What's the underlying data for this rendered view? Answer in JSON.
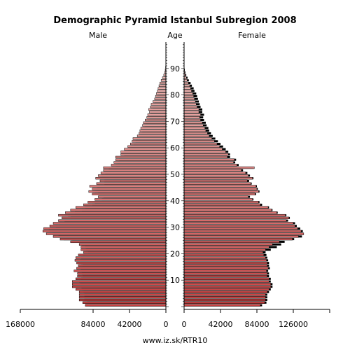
{
  "chart_data": {
    "type": "bar",
    "orientation": "horizontal-pyramid",
    "title": "Demographic Pyramid Istanbul Subregion 2008",
    "left_label": "Male",
    "center_label": "Age",
    "right_label": "Female",
    "footer": "www.iz.sk/RTR10",
    "age_ticks": [
      "20",
      "30",
      "40",
      "50",
      "60",
      "70",
      "80",
      "90",
      "10"
    ],
    "age_tick_values": [
      20,
      30,
      40,
      50,
      60,
      70,
      80,
      90,
      10
    ],
    "male_axis": {
      "ticks": [
        "168000",
        "84000",
        "42000",
        "0"
      ],
      "tick_values": [
        168000,
        84000,
        42000,
        0
      ],
      "max": 168000
    },
    "female_axis": {
      "ticks": [
        "0",
        "42000",
        "84000",
        "126000"
      ],
      "tick_values": [
        0,
        42000,
        84000,
        126000
      ],
      "max": 168000
    },
    "ages": [
      0,
      1,
      2,
      3,
      4,
      5,
      6,
      7,
      8,
      9,
      10,
      11,
      12,
      13,
      14,
      15,
      16,
      17,
      18,
      19,
      20,
      21,
      22,
      23,
      24,
      25,
      26,
      27,
      28,
      29,
      30,
      31,
      32,
      33,
      34,
      35,
      36,
      37,
      38,
      39,
      40,
      41,
      42,
      43,
      44,
      45,
      46,
      47,
      48,
      49,
      50,
      51,
      52,
      53,
      54,
      55,
      56,
      57,
      58,
      59,
      60,
      61,
      62,
      63,
      64,
      65,
      66,
      67,
      68,
      69,
      70,
      71,
      72,
      73,
      74,
      75,
      76,
      77,
      78,
      79,
      80,
      81,
      82,
      83,
      84,
      85,
      86,
      87,
      88,
      89,
      90,
      91,
      92,
      93,
      94,
      95,
      96,
      97,
      98,
      99
    ],
    "male_2008": [
      93000,
      96000,
      100000,
      100000,
      100000,
      100000,
      104000,
      108000,
      108000,
      108000,
      104000,
      102000,
      102000,
      106000,
      103000,
      101000,
      103000,
      105000,
      104000,
      101000,
      95000,
      98000,
      98000,
      100000,
      110000,
      122000,
      130000,
      138000,
      142000,
      141000,
      134000,
      130000,
      124000,
      120000,
      124000,
      116000,
      110000,
      104000,
      95000,
      90000,
      82000,
      78000,
      85000,
      89000,
      85000,
      88000,
      80000,
      76000,
      81000,
      78000,
      75000,
      72000,
      72000,
      63000,
      60000,
      58000,
      58000,
      52000,
      52000,
      48000,
      44000,
      41000,
      39000,
      38000,
      33000,
      31000,
      30000,
      29000,
      27000,
      26000,
      24000,
      22000,
      21000,
      19000,
      20000,
      18000,
      17000,
      15000,
      13000,
      12000,
      11000,
      10000,
      9000,
      8000,
      7000,
      5500,
      4000,
      2500,
      1500,
      800,
      400,
      200,
      100,
      50,
      0,
      0,
      0,
      0,
      0,
      0
    ],
    "male_prev": [
      88000,
      91000,
      94000,
      94000,
      94000,
      95000,
      97000,
      98000,
      99000,
      100000,
      98000,
      96000,
      97000,
      99000,
      98000,
      96000,
      98000,
      99000,
      98000,
      96000,
      90000,
      92000,
      93000,
      97000,
      108000,
      118000,
      124000,
      131000,
      135000,
      135000,
      127000,
      123000,
      117000,
      110000,
      113000,
      105000,
      97000,
      93000,
      85000,
      82000,
      74000,
      72000,
      78000,
      82000,
      80000,
      79000,
      71000,
      71000,
      76000,
      74000,
      70000,
      66000,
      66000,
      58000,
      56000,
      54000,
      53000,
      48000,
      48000,
      44000,
      40000,
      37000,
      35000,
      34000,
      30000,
      28000,
      27000,
      26000,
      24000,
      23000,
      21000,
      19000,
      18000,
      17000,
      17000,
      15000,
      14000,
      13000,
      12000,
      10000,
      9000,
      8000,
      7000,
      6000,
      5000,
      4000,
      3000,
      2000,
      1000,
      500,
      300,
      100,
      50,
      0,
      0,
      0,
      0,
      0,
      0,
      0
    ],
    "female_2008": [
      88000,
      93000,
      94000,
      94000,
      94000,
      96000,
      98000,
      100000,
      100000,
      98000,
      98000,
      96000,
      96000,
      95000,
      97000,
      96000,
      96000,
      95000,
      94000,
      92000,
      91000,
      94000,
      98000,
      102000,
      110000,
      125000,
      132000,
      138000,
      135000,
      131000,
      128000,
      126000,
      118000,
      121000,
      117000,
      107000,
      101000,
      97000,
      88000,
      86000,
      79000,
      74000,
      82000,
      86000,
      84000,
      83000,
      77000,
      73000,
      79000,
      74000,
      71000,
      66000,
      81000,
      61000,
      57000,
      58000,
      50000,
      51000,
      48000,
      44000,
      41000,
      38000,
      35000,
      32000,
      29000,
      27000,
      25000,
      24000,
      22000,
      21000,
      19000,
      18000,
      19000,
      17000,
      17000,
      15000,
      14000,
      13000,
      12000,
      11000,
      10000,
      8500,
      7500,
      6500,
      5000,
      3500,
      2500,
      1500,
      800,
      400,
      200,
      100,
      50,
      0,
      0,
      0,
      0,
      0,
      0,
      0
    ],
    "female_prev": [
      90000,
      95000,
      96000,
      96000,
      96000,
      98000,
      100000,
      102000,
      102000,
      100000,
      100000,
      98000,
      98000,
      97000,
      99000,
      98000,
      98000,
      97000,
      96000,
      95000,
      94000,
      100000,
      107000,
      112000,
      116000,
      127000,
      136000,
      138000,
      137000,
      134000,
      130000,
      128000,
      120000,
      122000,
      118000,
      108000,
      102000,
      98000,
      90000,
      87000,
      80000,
      76000,
      83000,
      87000,
      85000,
      84000,
      78000,
      75000,
      80000,
      76000,
      73000,
      68000,
      80000,
      63000,
      59000,
      60000,
      53000,
      53000,
      51000,
      48000,
      45000,
      42000,
      39000,
      36000,
      33000,
      31000,
      29000,
      28000,
      26000,
      25000,
      23000,
      22000,
      23000,
      21000,
      21000,
      19000,
      18000,
      17000,
      16000,
      15000,
      14000,
      12000,
      11000,
      9000,
      7500,
      5500,
      4000,
      2500,
      1500,
      800,
      400,
      200,
      100,
      50,
      0,
      0,
      0,
      0,
      0,
      0
    ],
    "colors": {
      "bar_top": "#f2c4c0",
      "bar_bottom": "#c84040",
      "prev_overlay": "#000000",
      "bar_outline": "#000000",
      "axis": "#000000"
    }
  }
}
